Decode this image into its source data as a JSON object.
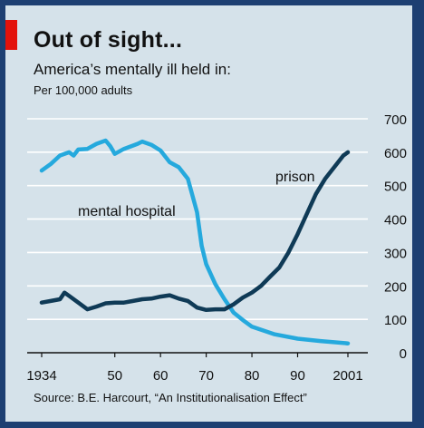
{
  "header": {
    "title": "Out of sight...",
    "subtitle": "America’s mentally ill held in:",
    "unit": "Per 100,000 adults"
  },
  "footer": {
    "source": "Source: B.E. Harcourt, “An Institutionalisation Effect”"
  },
  "colors": {
    "background": "#d5e2ea",
    "frame": "#1d3f72",
    "accent_red": "#e3120b",
    "mental_hospital": "#25a9dd",
    "prison": "#0f3a56"
  },
  "chart_data": {
    "type": "line",
    "title": "Out of sight...",
    "subtitle": "America’s mentally ill held in:",
    "ylabel": "Per 100,000 adults",
    "xlim": [
      1934,
      2001
    ],
    "ylim": [
      0,
      700
    ],
    "yticks": [
      0,
      100,
      200,
      300,
      400,
      500,
      600,
      700
    ],
    "yaxis_side": "right",
    "grid": "horizontal",
    "xticks": [
      {
        "value": 1934,
        "label": "1934"
      },
      {
        "value": 1950,
        "label": "50"
      },
      {
        "value": 1960,
        "label": "60"
      },
      {
        "value": 1970,
        "label": "70"
      },
      {
        "value": 1980,
        "label": "80"
      },
      {
        "value": 1990,
        "label": "90"
      },
      {
        "value": 2001,
        "label": "2001"
      }
    ],
    "series": [
      {
        "name": "mental hospital",
        "color": "#25a9dd",
        "x": [
          1934,
          1936,
          1938,
          1940,
          1941,
          1942,
          1944,
          1946,
          1948,
          1949,
          1950,
          1952,
          1954,
          1955,
          1956,
          1958,
          1960,
          1962,
          1964,
          1966,
          1968,
          1969,
          1970,
          1972,
          1974,
          1976,
          1978,
          1980,
          1985,
          1990,
          1995,
          2001
        ],
        "y": [
          545,
          565,
          590,
          600,
          590,
          608,
          610,
          625,
          635,
          618,
          595,
          610,
          620,
          625,
          632,
          622,
          605,
          570,
          555,
          520,
          420,
          320,
          265,
          205,
          160,
          120,
          98,
          78,
          55,
          42,
          35,
          28
        ]
      },
      {
        "name": "prison",
        "color": "#0f3a56",
        "x": [
          1934,
          1936,
          1938,
          1939,
          1940,
          1942,
          1944,
          1946,
          1948,
          1950,
          1952,
          1954,
          1956,
          1958,
          1960,
          1962,
          1964,
          1966,
          1968,
          1970,
          1972,
          1974,
          1976,
          1978,
          1980,
          1982,
          1984,
          1986,
          1988,
          1990,
          1992,
          1994,
          1996,
          1998,
          2000,
          2001
        ],
        "y": [
          150,
          155,
          160,
          180,
          170,
          150,
          130,
          138,
          148,
          150,
          150,
          155,
          160,
          162,
          168,
          172,
          162,
          155,
          135,
          128,
          130,
          130,
          145,
          165,
          180,
          200,
          228,
          255,
          300,
          355,
          415,
          475,
          520,
          555,
          590,
          600
        ]
      }
    ],
    "annotations": [
      {
        "text": "mental hospital",
        "series": "mental hospital"
      },
      {
        "text": "prison",
        "series": "prison"
      }
    ]
  }
}
